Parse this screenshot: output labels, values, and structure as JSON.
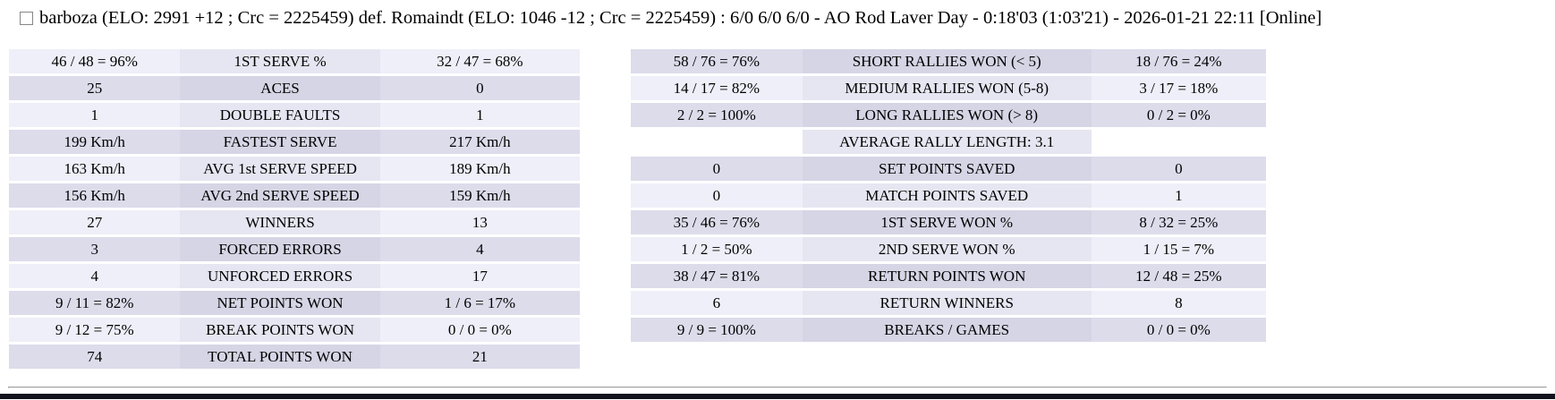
{
  "header": {
    "checkbox_checked": false,
    "title": "barboza (ELO: 2991 +12 ; Crc = 2225459) def. Romaindt (ELO: 1046 -12 ; Crc = 2225459) : 6/0 6/0 6/0 - AO Rod Laver Day - 0:18'03 (1:03'21) - 2026-01-21 22:11 [Online]"
  },
  "stats_left": {
    "rows": [
      {
        "p1": "46 / 48 = 96%",
        "label": "1ST SERVE %",
        "p2": "32 / 47 = 68%"
      },
      {
        "p1": "25",
        "label": "ACES",
        "p2": "0"
      },
      {
        "p1": "1",
        "label": "DOUBLE FAULTS",
        "p2": "1"
      },
      {
        "p1": "199 Km/h",
        "label": "FASTEST SERVE",
        "p2": "217 Km/h"
      },
      {
        "p1": "163 Km/h",
        "label": "AVG 1st SERVE SPEED",
        "p2": "189 Km/h"
      },
      {
        "p1": "156 Km/h",
        "label": "AVG 2nd SERVE SPEED",
        "p2": "159 Km/h"
      },
      {
        "p1": "27",
        "label": "WINNERS",
        "p2": "13"
      },
      {
        "p1": "3",
        "label": "FORCED ERRORS",
        "p2": "4"
      },
      {
        "p1": "4",
        "label": "UNFORCED ERRORS",
        "p2": "17"
      },
      {
        "p1": "9 / 11 = 82%",
        "label": "NET POINTS WON",
        "p2": "1 / 6 = 17%"
      },
      {
        "p1": "9 / 12 = 75%",
        "label": "BREAK POINTS WON",
        "p2": "0 / 0 = 0%"
      },
      {
        "p1": "74",
        "label": "TOTAL POINTS WON",
        "p2": "21"
      }
    ]
  },
  "stats_right": {
    "rows": [
      {
        "p1": "58 / 76 = 76%",
        "label": "SHORT RALLIES WON (< 5)",
        "p2": "18 / 76 = 24%"
      },
      {
        "p1": "14 / 17 = 82%",
        "label": "MEDIUM RALLIES WON (5-8)",
        "p2": "3 / 17 = 18%"
      },
      {
        "p1": "2 / 2 = 100%",
        "label": "LONG RALLIES WON (> 8)",
        "p2": "0 / 2 = 0%"
      },
      {
        "p1": "",
        "label": "AVERAGE RALLY LENGTH: 3.1",
        "p2": ""
      },
      {
        "p1": "0",
        "label": "SET POINTS SAVED",
        "p2": "0"
      },
      {
        "p1": "0",
        "label": "MATCH POINTS SAVED",
        "p2": "1"
      },
      {
        "p1": "35 / 46 = 76%",
        "label": "1ST SERVE WON %",
        "p2": "8 / 32 = 25%"
      },
      {
        "p1": "1 / 2 = 50%",
        "label": "2ND SERVE WON %",
        "p2": "1 / 15 = 7%"
      },
      {
        "p1": "38 / 47 = 81%",
        "label": "RETURN POINTS WON",
        "p2": "12 / 48 = 25%"
      },
      {
        "p1": "6",
        "label": "RETURN WINNERS",
        "p2": "8"
      },
      {
        "p1": "9 / 9 = 100%",
        "label": "BREAKS / GAMES",
        "p2": "0 / 0 = 0%"
      }
    ]
  },
  "colors": {
    "row_light_side": "#EFEFF9",
    "row_light_mid": "#E6E6F2",
    "row_dark_side": "#DCDCEB",
    "row_dark_mid": "#D5D5E5",
    "divider": "#9E9E9E",
    "bottom_bar": "#12121C"
  }
}
